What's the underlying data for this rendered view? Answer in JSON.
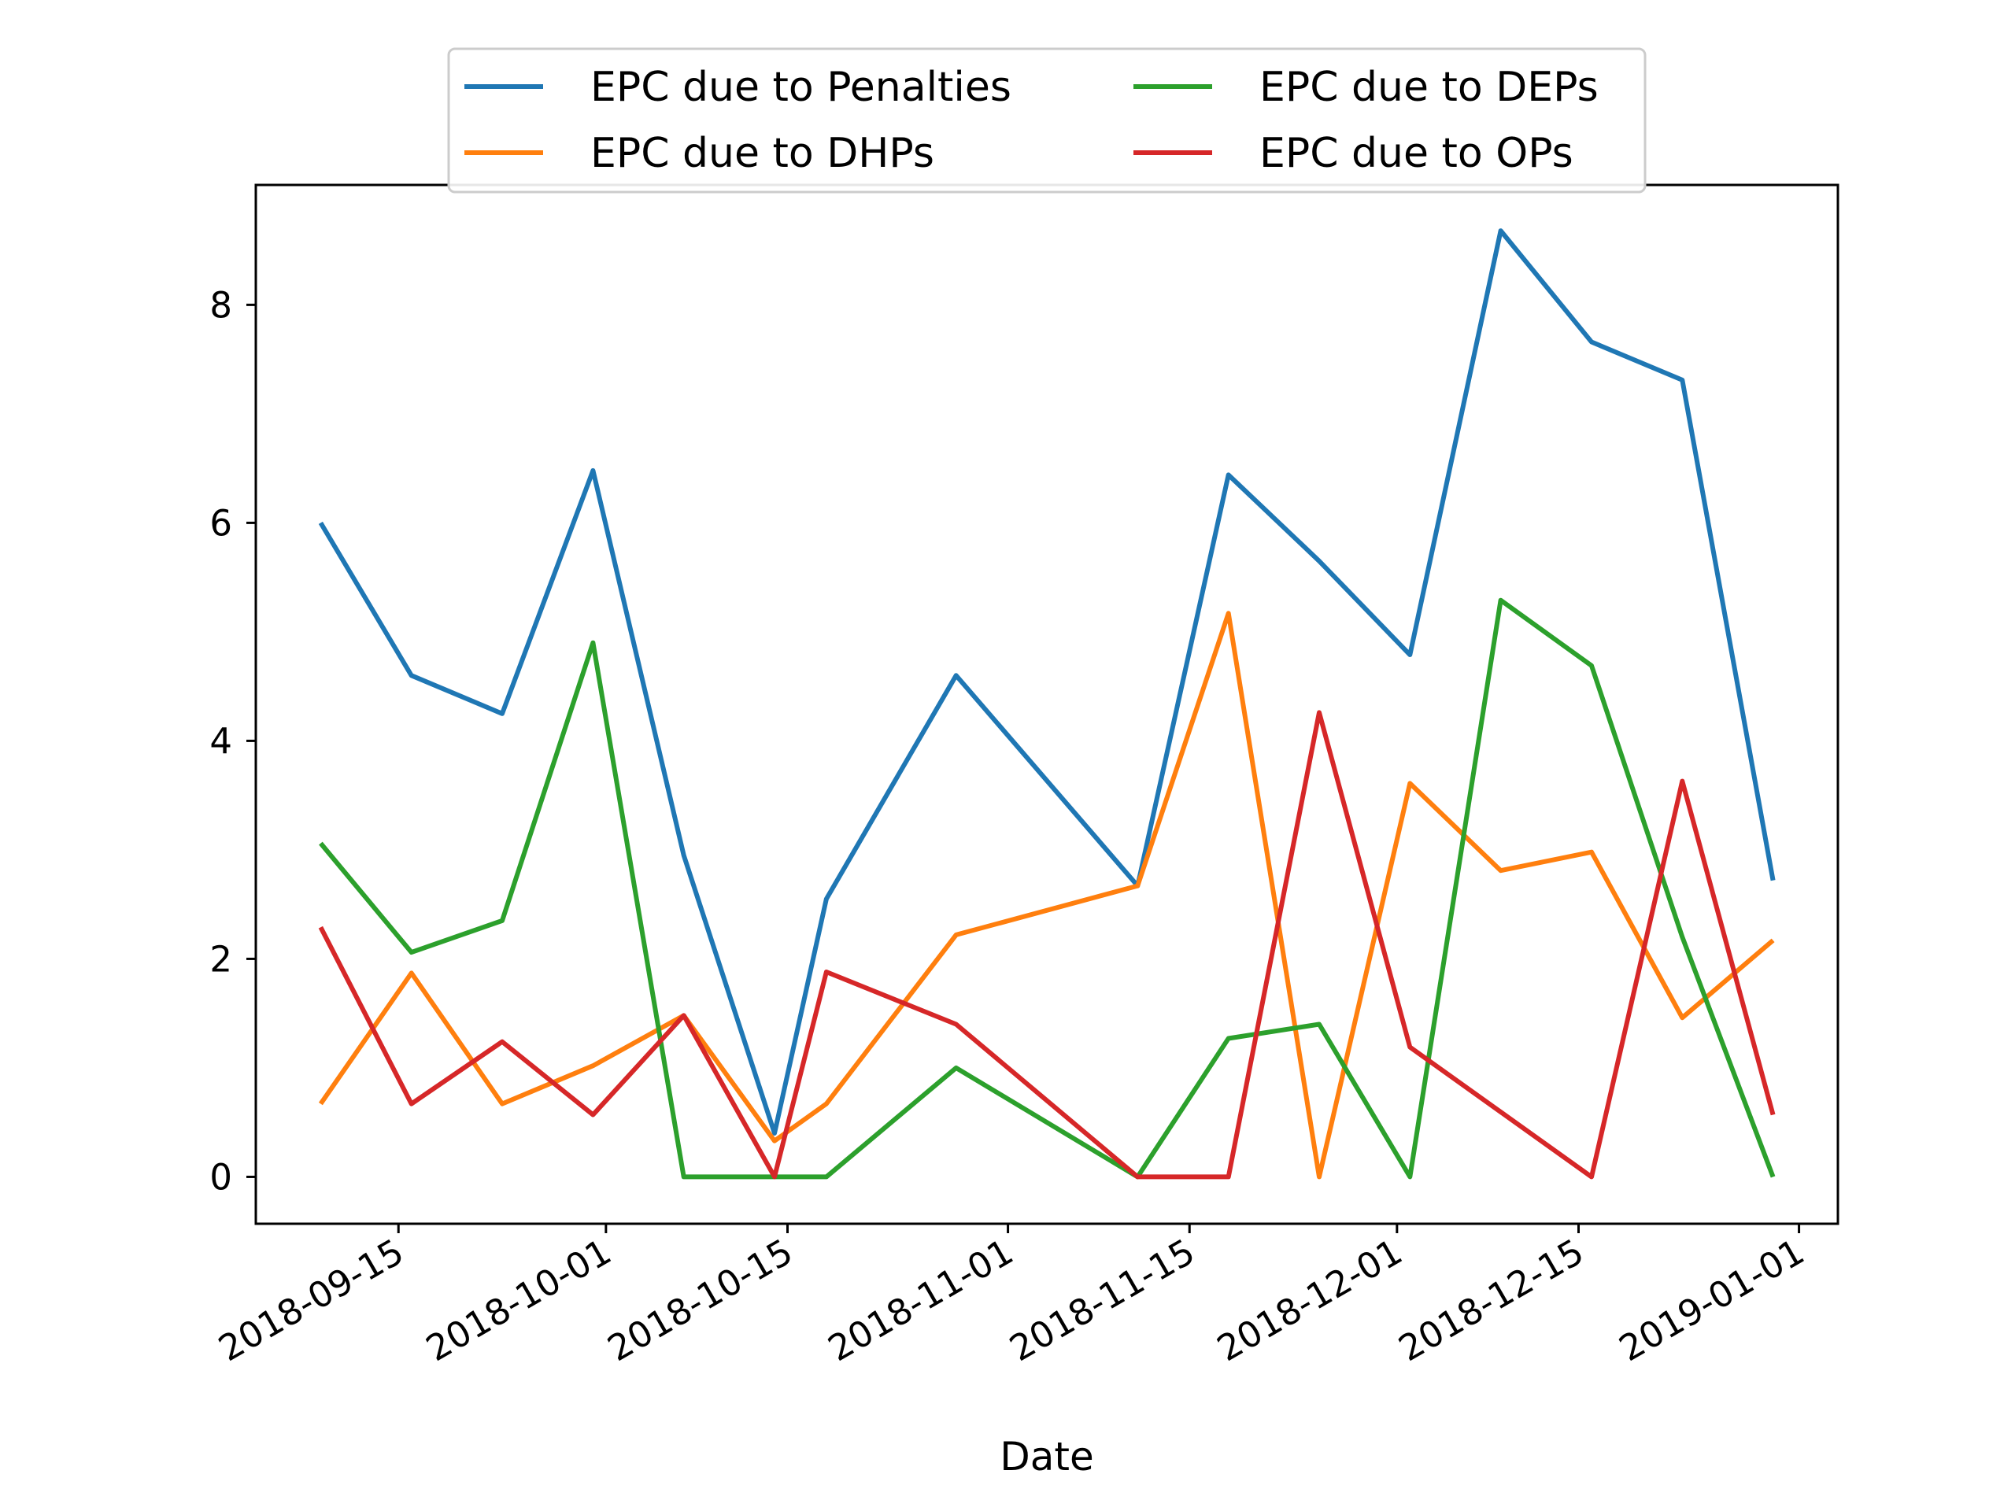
{
  "chart_data": {
    "type": "line",
    "title": "",
    "xlabel": "Date",
    "ylabel": "",
    "x": [
      "2018-09-09",
      "2018-09-16",
      "2018-09-23",
      "2018-09-30",
      "2018-10-07",
      "2018-10-14",
      "2018-10-18",
      "2018-10-28",
      "2018-11-11",
      "2018-11-18",
      "2018-11-25",
      "2018-12-02",
      "2018-12-09",
      "2018-12-16",
      "2018-12-23",
      "2018-12-30"
    ],
    "series": [
      {
        "name": "EPC due to Penalties",
        "color": "#1f77b4",
        "values": [
          6.0,
          4.6,
          4.25,
          6.48,
          2.95,
          0.4,
          2.55,
          4.6,
          2.67,
          6.44,
          5.65,
          4.79,
          8.68,
          7.66,
          7.31,
          2.72
        ]
      },
      {
        "name": "EPC due to DHPs",
        "color": "#ff7f0e",
        "values": [
          0.67,
          1.87,
          0.67,
          1.02,
          1.48,
          0.33,
          0.67,
          2.22,
          2.67,
          5.17,
          0.0,
          3.61,
          2.81,
          2.98,
          1.46,
          2.17
        ]
      },
      {
        "name": "EPC due to DEPs",
        "color": "#2ca02c",
        "values": [
          3.06,
          2.06,
          2.35,
          4.9,
          0.0,
          0.0,
          0.0,
          1.0,
          0.0,
          1.27,
          1.4,
          0.0,
          5.29,
          4.69,
          2.2,
          0.0
        ]
      },
      {
        "name": "EPC due to OPs",
        "color": "#d62728",
        "values": [
          2.29,
          0.67,
          1.24,
          0.57,
          1.48,
          0.0,
          1.88,
          1.4,
          0.0,
          0.0,
          4.26,
          1.19,
          null,
          0.0,
          3.63,
          0.57
        ]
      }
    ],
    "xticks": [
      "2018-09-15",
      "2018-10-01",
      "2018-10-15",
      "2018-11-01",
      "2018-11-15",
      "2018-12-01",
      "2018-12-15",
      "2019-01-01"
    ],
    "yticks": [
      0,
      2,
      4,
      6,
      8
    ],
    "xlim": [
      "2018-09-04",
      "2019-01-04"
    ],
    "ylim": [
      -0.43,
      9.1
    ],
    "grid": false,
    "legend_position": "top-center, outside plot, 2 columns"
  }
}
